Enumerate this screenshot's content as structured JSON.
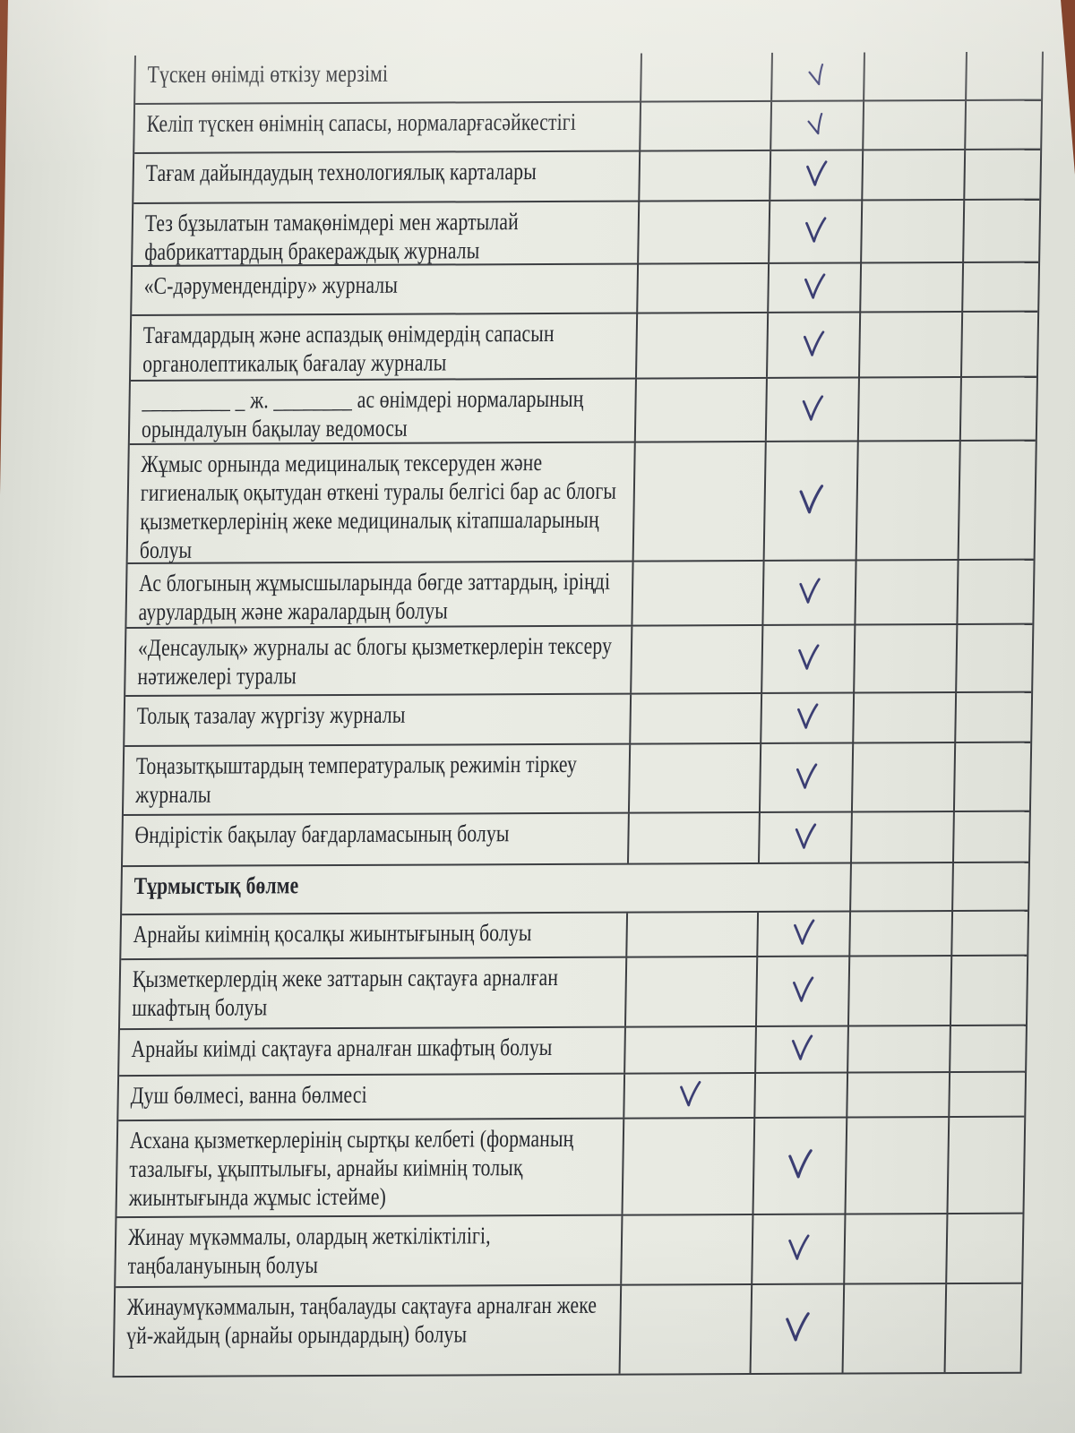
{
  "document": {
    "kind_note": "scanned checklist page (photo of paper form)",
    "ink_color": "#3b3e73",
    "line_color": "#3c3e42",
    "check_symbol": "✓",
    "table": {
      "columns": [
        "item",
        "mark-1",
        "mark-2",
        "mark-3",
        "mark-4"
      ],
      "rows": [
        {
          "label": "Түскен өнімді өткізу мерзімі",
          "check": 3
        },
        {
          "label": "Келіп түскен өнімнің сапасы, нормаларғасәйкестігі",
          "check": 3
        },
        {
          "label": "Тағам дайындаудың технологиялық карталары",
          "check": 3
        },
        {
          "label": "Тез бұзылатын тамақөнімдері мен жартылай фабрикаттардың бракераждық журналы",
          "check": 3
        },
        {
          "label": "«С-дәрумендендіру» журналы",
          "check": 3
        },
        {
          "label": "Тағамдардың және аспаздық өнімдердің сапасын органолептикалық бағалау журналы",
          "check": 3
        },
        {
          "label": "_________ _ ж. ________ ас өнімдері нормаларының орындалуын бақылау ведомосы",
          "check": 3
        },
        {
          "label": "Жұмыс орнында медициналық тексеруден және гигиеналық оқытудан өткені туралы белгісі бар ас блогы қызметкерлерінің жеке медициналық кітапшаларының болуы",
          "check": 3
        },
        {
          "label": "Ас блогының жұмысшыларында бөгде заттардың, іріңді аурулардың және жаралардың болуы",
          "check": 3
        },
        {
          "label": "«Денсаулық» журналы ас блогы қызметкерлерін тексеру нәтижелері туралы",
          "check": 3
        },
        {
          "label": "Толық тазалау жүргізу журналы",
          "check": 3
        },
        {
          "label": "Тоңазытқыштардың температуралық режимін тіркеу журналы",
          "check": 3
        },
        {
          "label": "Өндірістік бақылау бағдарламасының болуы",
          "check": 3
        },
        {
          "label": "Тұрмыстық бөлме",
          "section": true,
          "check": 0
        },
        {
          "label": "Арнайы киімнің қосалқы жиынтығының болуы",
          "check": 3
        },
        {
          "label": "Қызметкерлердің жеке заттарын сақтауға арналған шкафтың болуы",
          "check": 3
        },
        {
          "label": "Арнайы киімді сақтауға арналған шкафтың болуы",
          "check": 3
        },
        {
          "label": "Душ бөлмесі, ванна бөлмесі",
          "check": 2
        },
        {
          "label": "Асхана қызметкерлерінің сыртқы келбеті (форманың тазалығы, ұқыптылығы, арнайы киімнің толық жиынтығында жұмыс істейме)",
          "check": 3
        },
        {
          "label": "Жинау мүкәммалы, олардың жеткіліктілігі, таңбалануының болуы",
          "check": 3
        },
        {
          "label": "Жинаумүкәммалын, таңбалауды сақтауға арналған жеке үй-жайдың (арнайы орындардың) болуы",
          "check": 3
        }
      ]
    }
  }
}
